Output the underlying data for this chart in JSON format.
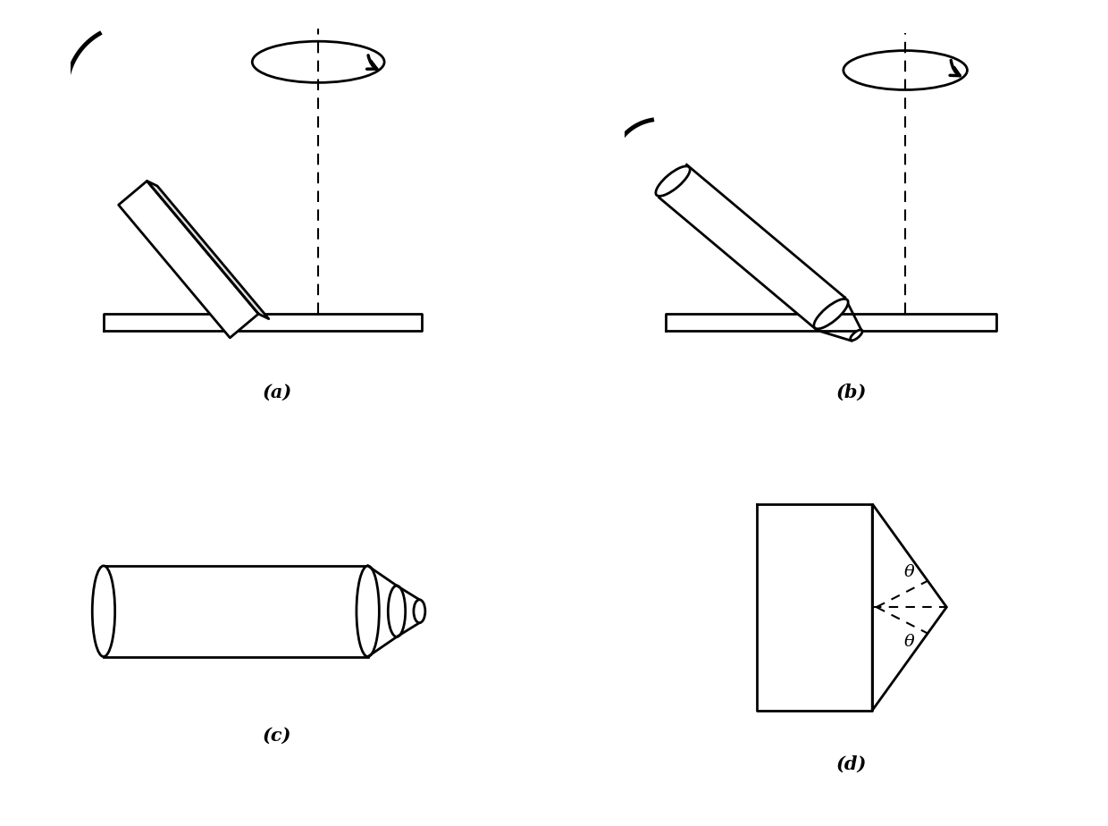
{
  "bg_color": "#ffffff",
  "line_color": "#000000",
  "label_a": "(a)",
  "label_b": "(b)",
  "label_c": "(c)",
  "label_d": "(d)",
  "label_fontsize": 15,
  "label_fontweight": "bold",
  "theta_label": "θ"
}
